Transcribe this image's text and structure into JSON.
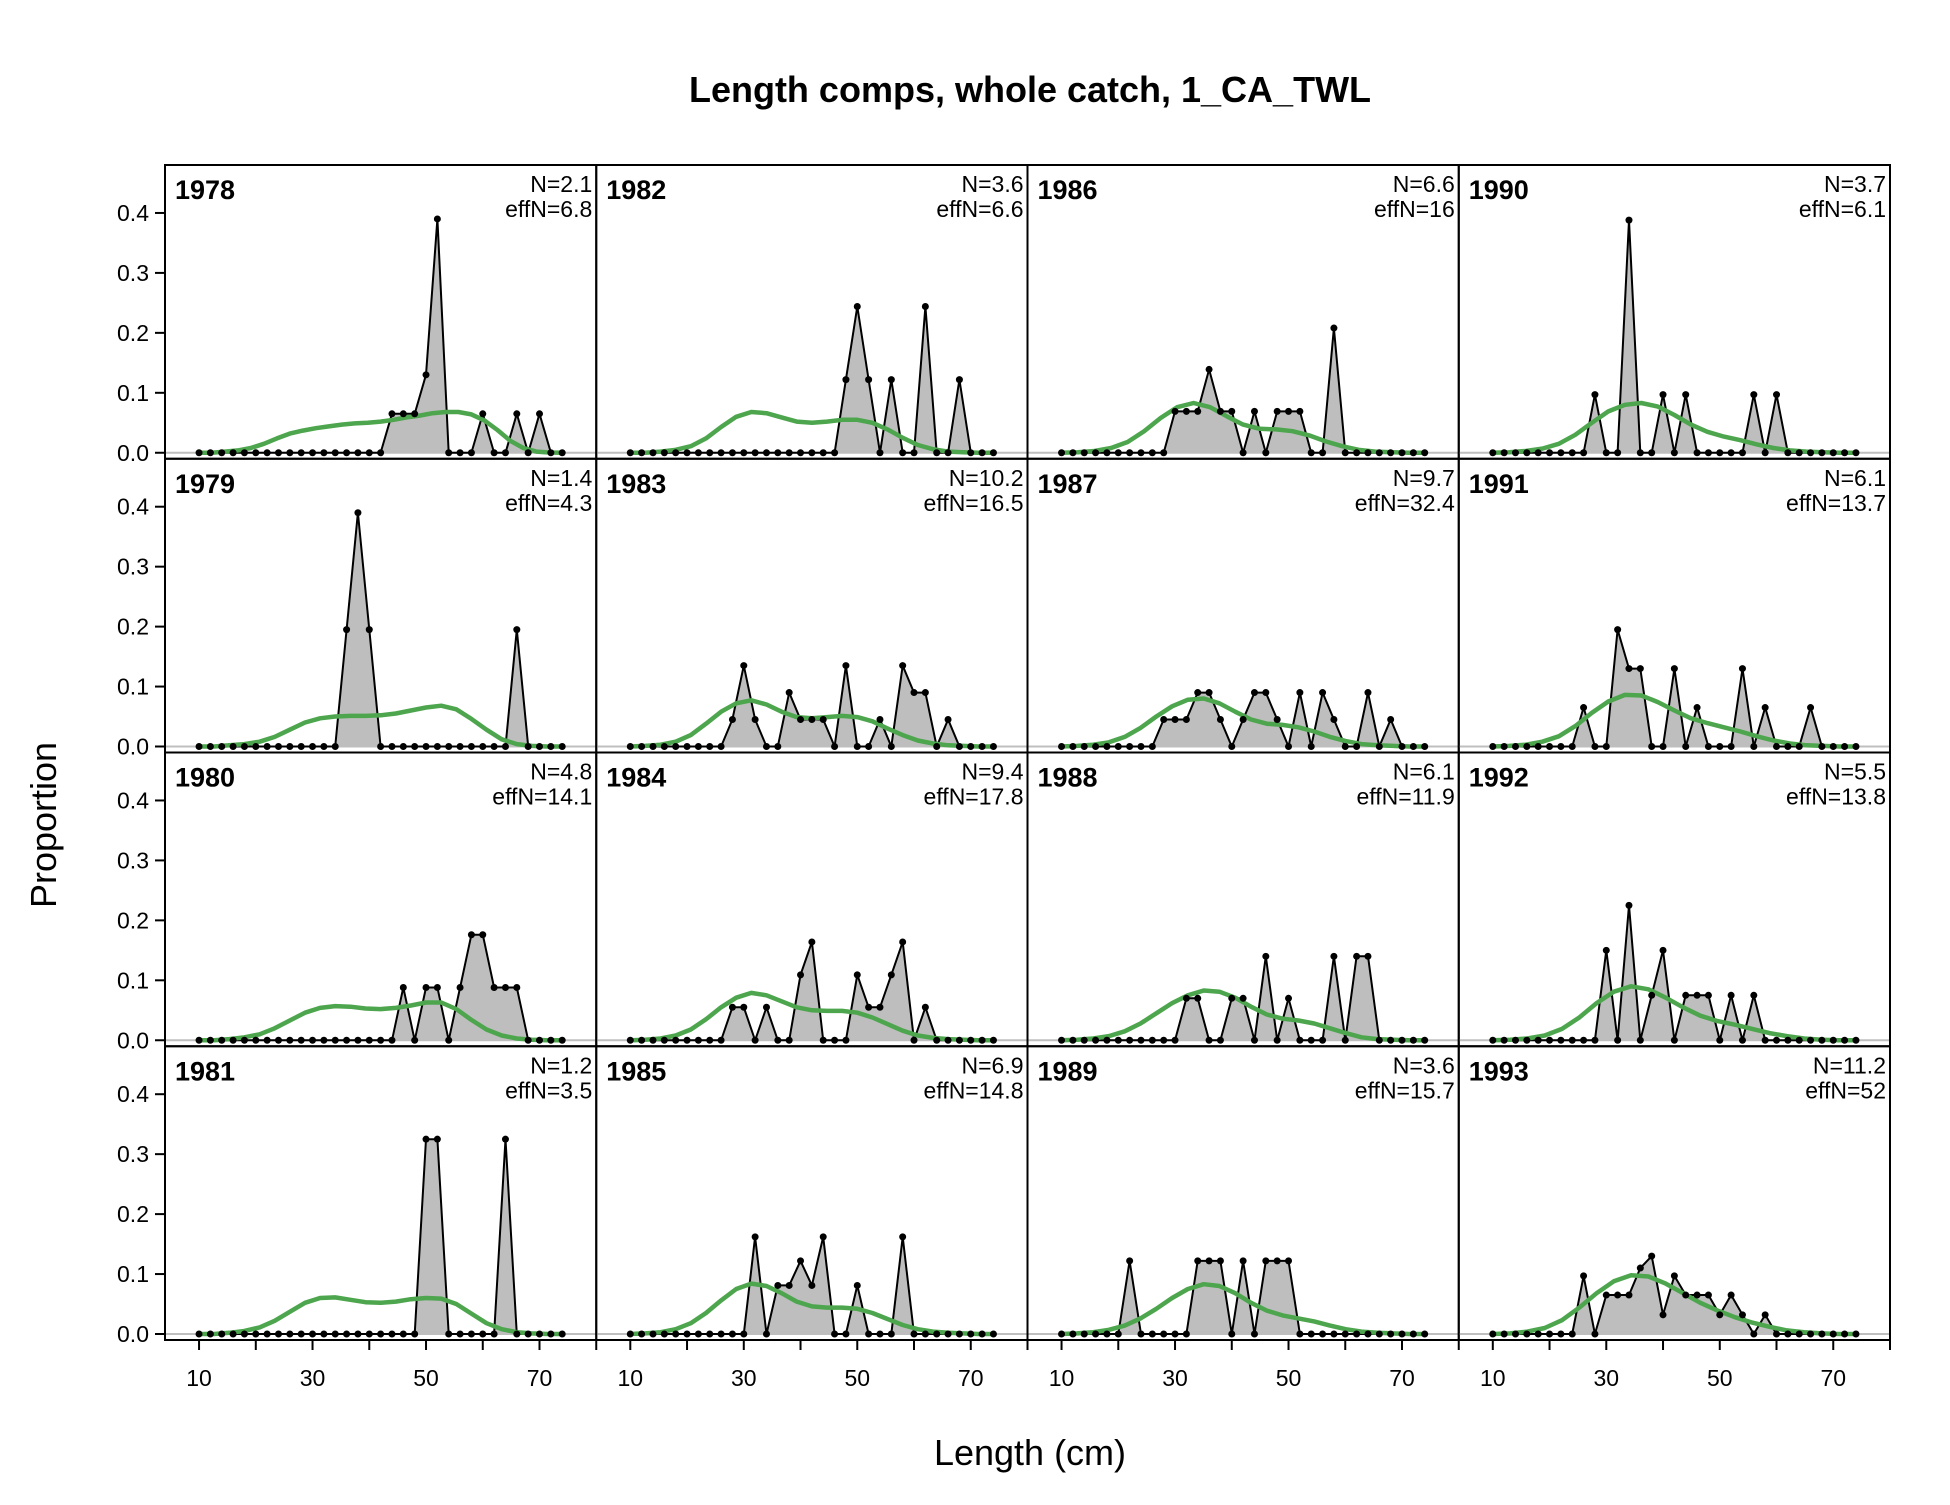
{
  "chart_data": {
    "type": "area",
    "title": "Length comps, whole catch, 1_CA_TWL",
    "xlabel": "Length (cm)",
    "ylabel": "Proportion",
    "xlim": [
      4,
      80
    ],
    "ylim": [
      -0.01,
      0.48
    ],
    "x_ticks": [
      10,
      30,
      50,
      70
    ],
    "y_ticks": [
      0.0,
      0.1,
      0.2,
      0.3,
      0.4
    ],
    "bins": [
      10,
      12,
      14,
      16,
      18,
      20,
      22,
      24,
      26,
      28,
      30,
      32,
      34,
      36,
      38,
      40,
      42,
      44,
      46,
      48,
      50,
      52,
      54,
      56,
      58,
      60,
      62,
      64,
      66,
      68,
      70,
      72,
      74
    ],
    "layout": {
      "columns": 4,
      "rows": 4,
      "order": "column-major"
    },
    "colors": {
      "observed_fill": "#bebebe",
      "observed_line": "#000000",
      "expected_line": "#4da64d",
      "zero_line": "#bfbfbf"
    },
    "series_names": {
      "observed": "",
      "expected": ""
    },
    "panels": [
      {
        "year": "1978",
        "n_label": "N=2.1",
        "effn_label": "effN=6.8",
        "obs": [
          0,
          0,
          0,
          0,
          0,
          0,
          0,
          0,
          0,
          0,
          0,
          0,
          0,
          0,
          0,
          0,
          0,
          0.065,
          0.065,
          0.065,
          0.13,
          0.39,
          0,
          0,
          0,
          0.065,
          0,
          0,
          0.065,
          0,
          0.065,
          0,
          0
        ],
        "exp": [
          0,
          0,
          0.002,
          0.004,
          0.008,
          0.015,
          0.024,
          0.032,
          0.037,
          0.041,
          0.044,
          0.047,
          0.049,
          0.05,
          0.052,
          0.055,
          0.059,
          0.062,
          0.066,
          0.068,
          0.068,
          0.064,
          0.054,
          0.038,
          0.02,
          0.008,
          0.002,
          0.0005,
          0
        ]
      },
      {
        "year": "1979",
        "n_label": "N=1.4",
        "effn_label": "effN=4.3",
        "obs": [
          0,
          0,
          0,
          0,
          0,
          0,
          0,
          0,
          0,
          0,
          0,
          0,
          0,
          0.195,
          0.39,
          0.195,
          0,
          0,
          0,
          0,
          0,
          0,
          0,
          0,
          0,
          0,
          0,
          0,
          0.195,
          0,
          0,
          0,
          0
        ],
        "exp": [
          0,
          0,
          0.002,
          0.004,
          0.008,
          0.016,
          0.028,
          0.04,
          0.047,
          0.05,
          0.051,
          0.051,
          0.052,
          0.055,
          0.06,
          0.065,
          0.068,
          0.062,
          0.046,
          0.028,
          0.012,
          0.004,
          0.001,
          0,
          0
        ]
      },
      {
        "year": "1980",
        "n_label": "N=4.8",
        "effn_label": "effN=14.1",
        "obs": [
          0,
          0,
          0,
          0,
          0,
          0,
          0,
          0,
          0,
          0,
          0,
          0,
          0,
          0,
          0,
          0,
          0,
          0,
          0.088,
          0,
          0.088,
          0.088,
          0,
          0.088,
          0.176,
          0.176,
          0.088,
          0.088,
          0.088,
          0,
          0,
          0,
          0
        ],
        "exp": [
          0,
          0,
          0.002,
          0.005,
          0.01,
          0.02,
          0.033,
          0.046,
          0.054,
          0.057,
          0.056,
          0.053,
          0.052,
          0.054,
          0.058,
          0.063,
          0.063,
          0.052,
          0.034,
          0.018,
          0.008,
          0.003,
          0.001,
          0,
          0
        ]
      },
      {
        "year": "1981",
        "n_label": "N=1.2",
        "effn_label": "effN=3.5",
        "obs": [
          0,
          0,
          0,
          0,
          0,
          0,
          0,
          0,
          0,
          0,
          0,
          0,
          0,
          0,
          0,
          0,
          0,
          0,
          0,
          0,
          0.325,
          0.325,
          0,
          0,
          0,
          0,
          0,
          0.325,
          0,
          0,
          0,
          0,
          0
        ],
        "exp": [
          0,
          0,
          0.002,
          0.005,
          0.011,
          0.022,
          0.037,
          0.052,
          0.06,
          0.061,
          0.057,
          0.053,
          0.052,
          0.054,
          0.058,
          0.06,
          0.059,
          0.05,
          0.034,
          0.018,
          0.008,
          0.003,
          0.001,
          0,
          0
        ]
      },
      {
        "year": "1982",
        "n_label": "N=3.6",
        "effn_label": "effN=6.6",
        "obs": [
          0,
          0,
          0,
          0,
          0,
          0,
          0,
          0,
          0,
          0,
          0,
          0,
          0,
          0,
          0,
          0,
          0,
          0,
          0,
          0.122,
          0.244,
          0.122,
          0,
          0.122,
          0,
          0,
          0.244,
          0,
          0,
          0.122,
          0,
          0,
          0
        ],
        "exp": [
          0,
          0,
          0.002,
          0.005,
          0.011,
          0.024,
          0.043,
          0.06,
          0.068,
          0.066,
          0.059,
          0.052,
          0.05,
          0.052,
          0.055,
          0.055,
          0.05,
          0.039,
          0.025,
          0.013,
          0.006,
          0.002,
          0.001,
          0,
          0
        ]
      },
      {
        "year": "1983",
        "n_label": "N=10.2",
        "effn_label": "effN=16.5",
        "obs": [
          0,
          0,
          0,
          0,
          0,
          0,
          0,
          0,
          0,
          0.045,
          0.135,
          0.045,
          0,
          0,
          0.09,
          0.045,
          0.045,
          0.045,
          0,
          0.135,
          0,
          0,
          0.045,
          0,
          0.135,
          0.09,
          0.09,
          0,
          0.045,
          0,
          0,
          0,
          0
        ],
        "exp": [
          0,
          0.001,
          0.003,
          0.008,
          0.019,
          0.038,
          0.058,
          0.072,
          0.077,
          0.07,
          0.058,
          0.049,
          0.047,
          0.049,
          0.051,
          0.049,
          0.042,
          0.03,
          0.019,
          0.01,
          0.005,
          0.002,
          0.001,
          0,
          0
        ]
      },
      {
        "year": "1984",
        "n_label": "N=9.4",
        "effn_label": "effN=17.8",
        "obs": [
          0,
          0,
          0,
          0,
          0,
          0,
          0,
          0,
          0,
          0.055,
          0.055,
          0,
          0.055,
          0,
          0,
          0.109,
          0.164,
          0,
          0,
          0,
          0.109,
          0.055,
          0.055,
          0.109,
          0.164,
          0,
          0.055,
          0,
          0,
          0,
          0,
          0,
          0
        ],
        "exp": [
          0,
          0.001,
          0.003,
          0.008,
          0.018,
          0.035,
          0.055,
          0.071,
          0.079,
          0.075,
          0.065,
          0.055,
          0.05,
          0.049,
          0.049,
          0.046,
          0.038,
          0.027,
          0.016,
          0.008,
          0.004,
          0.002,
          0.001,
          0,
          0
        ]
      },
      {
        "year": "1985",
        "n_label": "N=6.9",
        "effn_label": "effN=14.8",
        "obs": [
          0,
          0,
          0,
          0,
          0,
          0,
          0,
          0,
          0,
          0,
          0,
          0.162,
          0,
          0.081,
          0.081,
          0.122,
          0.081,
          0.162,
          0,
          0,
          0.081,
          0,
          0,
          0,
          0.162,
          0,
          0,
          0,
          0,
          0,
          0,
          0,
          0
        ],
        "exp": [
          0,
          0.001,
          0.003,
          0.008,
          0.018,
          0.035,
          0.056,
          0.075,
          0.084,
          0.08,
          0.068,
          0.054,
          0.046,
          0.044,
          0.044,
          0.042,
          0.035,
          0.025,
          0.015,
          0.008,
          0.004,
          0.002,
          0.001,
          0,
          0
        ]
      },
      {
        "year": "1986",
        "n_label": "N=6.6",
        "effn_label": "effN=16",
        "obs": [
          0,
          0,
          0,
          0,
          0,
          0,
          0,
          0,
          0,
          0,
          0.069,
          0.069,
          0.069,
          0.139,
          0.069,
          0.069,
          0,
          0.069,
          0,
          0.069,
          0.069,
          0.069,
          0,
          0,
          0.208,
          0,
          0,
          0,
          0,
          0,
          0,
          0,
          0
        ],
        "exp": [
          0,
          0.001,
          0.003,
          0.008,
          0.018,
          0.036,
          0.058,
          0.076,
          0.083,
          0.076,
          0.061,
          0.047,
          0.04,
          0.039,
          0.036,
          0.029,
          0.019,
          0.011,
          0.005,
          0.002,
          0.001,
          0,
          0
        ]
      },
      {
        "year": "1987",
        "n_label": "N=9.7",
        "effn_label": "effN=32.4",
        "obs": [
          0,
          0,
          0,
          0,
          0,
          0,
          0,
          0,
          0,
          0.045,
          0.045,
          0.045,
          0.09,
          0.09,
          0.045,
          0,
          0.045,
          0.09,
          0.09,
          0.045,
          0,
          0.09,
          0,
          0.09,
          0.045,
          0,
          0,
          0.09,
          0,
          0.045,
          0,
          0,
          0
        ],
        "exp": [
          0,
          0.001,
          0.003,
          0.007,
          0.016,
          0.031,
          0.05,
          0.067,
          0.078,
          0.08,
          0.072,
          0.058,
          0.045,
          0.038,
          0.036,
          0.032,
          0.025,
          0.016,
          0.009,
          0.004,
          0.002,
          0.001,
          0,
          0
        ]
      },
      {
        "year": "1988",
        "n_label": "N=6.1",
        "effn_label": "effN=11.9",
        "obs": [
          0,
          0,
          0,
          0,
          0,
          0,
          0,
          0,
          0,
          0,
          0,
          0.07,
          0.07,
          0,
          0,
          0.07,
          0.07,
          0,
          0.14,
          0,
          0.07,
          0,
          0,
          0,
          0.14,
          0,
          0.14,
          0.14,
          0,
          0,
          0,
          0,
          0
        ],
        "exp": [
          0,
          0.001,
          0.003,
          0.007,
          0.015,
          0.028,
          0.045,
          0.062,
          0.075,
          0.083,
          0.081,
          0.071,
          0.056,
          0.043,
          0.036,
          0.033,
          0.028,
          0.02,
          0.012,
          0.005,
          0.002,
          0.001,
          0,
          0
        ]
      },
      {
        "year": "1989",
        "n_label": "N=3.6",
        "effn_label": "effN=15.7",
        "obs": [
          0,
          0,
          0,
          0,
          0,
          0,
          0.122,
          0,
          0,
          0,
          0,
          0,
          0.122,
          0.122,
          0.122,
          0,
          0.122,
          0,
          0.122,
          0.122,
          0.122,
          0,
          0,
          0,
          0,
          0,
          0,
          0,
          0,
          0,
          0,
          0,
          0
        ],
        "exp": [
          0,
          0.001,
          0.003,
          0.007,
          0.014,
          0.026,
          0.042,
          0.06,
          0.075,
          0.083,
          0.08,
          0.068,
          0.052,
          0.039,
          0.031,
          0.026,
          0.021,
          0.014,
          0.008,
          0.004,
          0.002,
          0.001,
          0,
          0
        ]
      },
      {
        "year": "1990",
        "n_label": "N=3.7",
        "effn_label": "effN=6.1",
        "obs": [
          0,
          0,
          0,
          0,
          0,
          0,
          0,
          0,
          0,
          0.097,
          0,
          0,
          0.388,
          0,
          0,
          0.097,
          0,
          0.097,
          0,
          0,
          0,
          0,
          0,
          0.097,
          0,
          0.097,
          0,
          0,
          0,
          0,
          0,
          0,
          0
        ],
        "exp": [
          0,
          0.001,
          0.003,
          0.007,
          0.015,
          0.03,
          0.05,
          0.069,
          0.08,
          0.083,
          0.077,
          0.063,
          0.047,
          0.035,
          0.027,
          0.021,
          0.014,
          0.008,
          0.004,
          0.002,
          0.001,
          0,
          0
        ]
      },
      {
        "year": "1991",
        "n_label": "N=6.1",
        "effn_label": "effN=13.7",
        "obs": [
          0,
          0,
          0,
          0,
          0,
          0,
          0,
          0,
          0.065,
          0,
          0,
          0.195,
          0.13,
          0.13,
          0,
          0,
          0.13,
          0,
          0.065,
          0,
          0,
          0,
          0.13,
          0,
          0.065,
          0,
          0,
          0,
          0.065,
          0,
          0,
          0,
          0
        ],
        "exp": [
          0,
          0.001,
          0.003,
          0.008,
          0.017,
          0.034,
          0.056,
          0.075,
          0.086,
          0.085,
          0.074,
          0.06,
          0.047,
          0.039,
          0.032,
          0.025,
          0.017,
          0.01,
          0.005,
          0.002,
          0.001,
          0,
          0
        ]
      },
      {
        "year": "1992",
        "n_label": "N=5.5",
        "effn_label": "effN=13.8",
        "obs": [
          0,
          0,
          0,
          0,
          0,
          0,
          0,
          0,
          0,
          0,
          0.15,
          0,
          0.225,
          0,
          0.075,
          0.15,
          0,
          0.075,
          0.075,
          0.075,
          0,
          0.075,
          0,
          0.075,
          0,
          0,
          0,
          0,
          0,
          0,
          0,
          0,
          0
        ],
        "exp": [
          0,
          0.001,
          0.003,
          0.008,
          0.019,
          0.038,
          0.062,
          0.081,
          0.09,
          0.085,
          0.071,
          0.055,
          0.041,
          0.032,
          0.026,
          0.019,
          0.012,
          0.007,
          0.003,
          0.001,
          0,
          0
        ]
      },
      {
        "year": "1993",
        "n_label": "N=11.2",
        "effn_label": "effN=52",
        "obs": [
          0,
          0,
          0,
          0,
          0,
          0,
          0,
          0,
          0.097,
          0,
          0.065,
          0.065,
          0.065,
          0.11,
          0.13,
          0.032,
          0.097,
          0.065,
          0.065,
          0.065,
          0.032,
          0.065,
          0.032,
          0,
          0.032,
          0,
          0,
          0,
          0,
          0,
          0,
          0,
          0
        ],
        "exp": [
          0,
          0.001,
          0.004,
          0.01,
          0.023,
          0.044,
          0.068,
          0.088,
          0.098,
          0.096,
          0.084,
          0.068,
          0.052,
          0.039,
          0.028,
          0.019,
          0.012,
          0.006,
          0.003,
          0.001,
          0,
          0
        ]
      }
    ]
  }
}
